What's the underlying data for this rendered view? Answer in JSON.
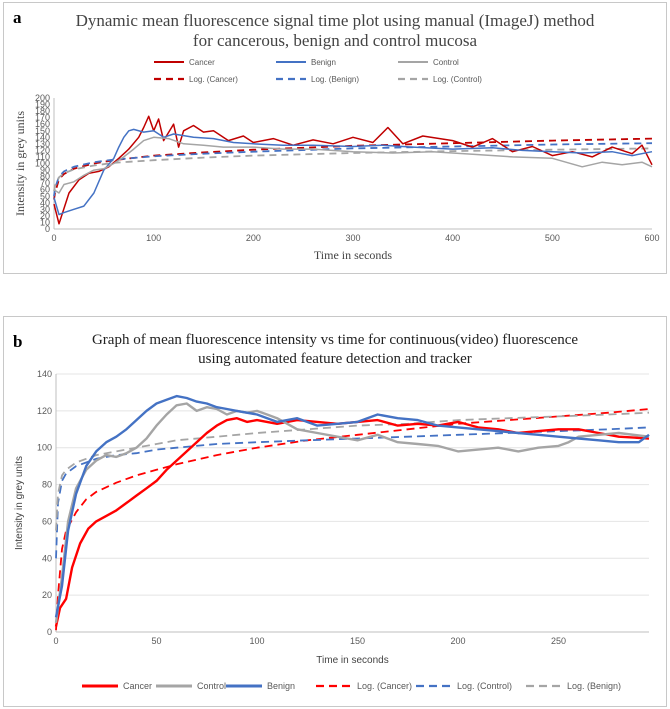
{
  "panel_a": {
    "letter": "a",
    "title_line1": "Dynamic mean fluorescence signal time plot using manual (ImageJ) method",
    "title_line2": "for cancerous, benign and control mucosa"
  },
  "panel_b": {
    "letter": "b",
    "title_line1": "Graph of mean fluorescence intensity  vs time for continuous(video) fluorescence",
    "title_line2": "using automated feature detection and tracker"
  },
  "chart_data": [
    {
      "type": "line",
      "title": "Dynamic mean fluorescence signal time plot using manual (ImageJ) method for cancerous, benign and control mucosa",
      "xlabel": "Time in seconds",
      "ylabel": "Intensity in grey units",
      "xlim": [
        0,
        600
      ],
      "ylim": [
        0,
        200
      ],
      "xticks": [
        0,
        100,
        200,
        300,
        400,
        500,
        600
      ],
      "yticks": [
        0,
        10,
        20,
        30,
        40,
        50,
        60,
        70,
        80,
        90,
        100,
        110,
        120,
        130,
        140,
        150,
        160,
        170,
        180,
        190,
        200
      ],
      "legend_position": "top",
      "series": [
        {
          "name": "Cancer",
          "color": "#c00000",
          "style": "solid",
          "x": [
            0,
            5,
            15,
            25,
            35,
            45,
            55,
            65,
            75,
            85,
            90,
            95,
            100,
            105,
            110,
            120,
            125,
            130,
            140,
            150,
            160,
            175,
            190,
            200,
            220,
            240,
            260,
            280,
            300,
            320,
            335,
            350,
            370,
            400,
            420,
            440,
            460,
            480,
            500,
            520,
            540,
            560,
            580,
            590,
            600
          ],
          "values": [
            38,
            8,
            55,
            75,
            85,
            88,
            95,
            108,
            122,
            140,
            155,
            172,
            150,
            168,
            135,
            160,
            125,
            150,
            158,
            148,
            150,
            135,
            142,
            132,
            138,
            128,
            136,
            130,
            140,
            132,
            155,
            130,
            142,
            135,
            125,
            138,
            118,
            126,
            112,
            118,
            110,
            125,
            115,
            128,
            98
          ]
        },
        {
          "name": "Benign",
          "color": "#4472c4",
          "style": "solid",
          "x": [
            0,
            5,
            10,
            20,
            30,
            40,
            50,
            60,
            65,
            70,
            75,
            80,
            90,
            100,
            110,
            120,
            140,
            160,
            180,
            200,
            230,
            260,
            300,
            330,
            360,
            400,
            440,
            470,
            500,
            530,
            560,
            580,
            600
          ],
          "values": [
            48,
            22,
            25,
            30,
            35,
            55,
            90,
            108,
            125,
            140,
            150,
            152,
            148,
            150,
            140,
            145,
            140,
            138,
            132,
            130,
            128,
            128,
            126,
            128,
            125,
            122,
            124,
            120,
            118,
            116,
            118,
            112,
            118
          ]
        },
        {
          "name": "Control",
          "color": "#a5a5a5",
          "style": "solid",
          "x": [
            0,
            5,
            10,
            20,
            30,
            40,
            50,
            60,
            70,
            80,
            90,
            100,
            115,
            130,
            150,
            170,
            200,
            230,
            260,
            300,
            340,
            380,
            420,
            460,
            500,
            530,
            550,
            570,
            590,
            600
          ],
          "values": [
            60,
            55,
            68,
            72,
            82,
            90,
            92,
            100,
            110,
            122,
            135,
            140,
            138,
            130,
            128,
            125,
            125,
            122,
            122,
            118,
            116,
            118,
            114,
            110,
            108,
            95,
            102,
            98,
            102,
            95
          ]
        },
        {
          "name": "Log. (Cancer)",
          "color": "#c00000",
          "style": "dashed",
          "x": [
            0,
            1,
            5,
            10,
            20,
            40,
            60,
            100,
            150,
            200,
            300,
            400,
            500,
            600
          ],
          "values": [
            45,
            55,
            76,
            84,
            92,
            100,
            105,
            112,
            117,
            121,
            127,
            131,
            135,
            138
          ]
        },
        {
          "name": "Log. (Benign)",
          "color": "#4472c4",
          "style": "dashed",
          "x": [
            0,
            1,
            5,
            10,
            20,
            40,
            60,
            100,
            150,
            200,
            300,
            400,
            500,
            600
          ],
          "values": [
            50,
            62,
            80,
            88,
            95,
            102,
            106,
            111,
            115,
            118,
            123,
            126,
            129,
            131
          ]
        },
        {
          "name": "Log. (Control)",
          "color": "#a5a5a5",
          "style": "dashed",
          "x": [
            0,
            1,
            5,
            10,
            20,
            40,
            60,
            100,
            150,
            200,
            300,
            400,
            500,
            600
          ],
          "values": [
            58,
            66,
            79,
            85,
            91,
            97,
            101,
            105,
            109,
            112,
            116,
            119,
            121,
            123
          ]
        }
      ]
    },
    {
      "type": "line",
      "title": "Graph of mean fluorescence intensity vs time for continuous(video) fluorescence using automated feature detection and tracker",
      "xlabel": "Time in seconds",
      "ylabel": "Intensity in grey units",
      "xlim": [
        0,
        295
      ],
      "ylim": [
        0,
        140
      ],
      "xticks": [
        0,
        50,
        100,
        150,
        200,
        250
      ],
      "yticks": [
        0,
        20,
        40,
        60,
        80,
        100,
        120,
        140
      ],
      "legend_position": "bottom",
      "series": [
        {
          "name": "Cancer",
          "color": "#ff0000",
          "style": "solid",
          "x": [
            0,
            2,
            5,
            8,
            12,
            16,
            20,
            25,
            30,
            35,
            40,
            45,
            50,
            55,
            60,
            65,
            70,
            75,
            80,
            85,
            90,
            95,
            100,
            110,
            120,
            130,
            140,
            150,
            160,
            170,
            180,
            190,
            200,
            210,
            220,
            230,
            240,
            250,
            260,
            270,
            280,
            295
          ],
          "values": [
            3,
            13,
            18,
            35,
            48,
            56,
            60,
            63,
            66,
            70,
            74,
            78,
            82,
            88,
            93,
            98,
            103,
            108,
            112,
            115,
            116,
            114,
            115,
            113,
            115,
            114,
            113,
            114,
            115,
            112,
            113,
            112,
            114,
            111,
            110,
            108,
            109,
            110,
            110,
            108,
            106,
            105
          ]
        },
        {
          "name": "Control",
          "color": "#a5a5a5",
          "style": "solid",
          "x": [
            0,
            3,
            6,
            10,
            15,
            20,
            25,
            30,
            35,
            40,
            45,
            50,
            55,
            60,
            65,
            70,
            75,
            80,
            85,
            90,
            95,
            100,
            105,
            110,
            120,
            130,
            140,
            150,
            160,
            170,
            180,
            190,
            200,
            210,
            220,
            230,
            240,
            250,
            255,
            260,
            270,
            280,
            295
          ],
          "values": [
            5,
            30,
            60,
            78,
            88,
            93,
            96,
            95,
            97,
            100,
            105,
            112,
            118,
            123,
            124,
            120,
            122,
            121,
            118,
            120,
            119,
            120,
            118,
            116,
            110,
            108,
            106,
            104,
            107,
            103,
            102,
            101,
            98,
            99,
            100,
            98,
            100,
            101,
            103,
            106,
            107,
            108,
            106
          ]
        },
        {
          "name": "Benign",
          "color": "#4472c4",
          "style": "solid",
          "x": [
            0,
            3,
            6,
            10,
            15,
            20,
            25,
            30,
            35,
            40,
            45,
            50,
            55,
            60,
            65,
            70,
            75,
            80,
            85,
            90,
            100,
            110,
            120,
            130,
            140,
            150,
            160,
            170,
            180,
            190,
            200,
            210,
            220,
            230,
            240,
            250,
            260,
            270,
            280,
            290,
            295
          ],
          "values": [
            8,
            25,
            55,
            75,
            90,
            98,
            103,
            106,
            110,
            115,
            120,
            124,
            126,
            128,
            127,
            125,
            124,
            122,
            121,
            120,
            118,
            114,
            116,
            112,
            113,
            114,
            118,
            116,
            115,
            112,
            111,
            110,
            109,
            108,
            107,
            106,
            105,
            104,
            103,
            103,
            107
          ]
        },
        {
          "name": "Log. (Cancer)",
          "color": "#ff0000",
          "style": "dashed",
          "x": [
            0,
            1,
            3,
            5,
            10,
            15,
            20,
            30,
            40,
            50,
            60,
            80,
            100,
            125,
            150,
            175,
            200,
            225,
            250,
            275,
            295
          ],
          "values": [
            1,
            20,
            45,
            55,
            65,
            72,
            76,
            81,
            85,
            88,
            91,
            96,
            100,
            104,
            107,
            110,
            113,
            115,
            117,
            119,
            121
          ]
        },
        {
          "name": "Log. (Control)",
          "color": "#4472c4",
          "style": "dashed",
          "x": [
            0,
            1,
            3,
            5,
            10,
            15,
            20,
            30,
            40,
            50,
            60,
            80,
            100,
            125,
            150,
            175,
            200,
            225,
            250,
            275,
            295
          ],
          "values": [
            40,
            70,
            82,
            86,
            90,
            92,
            94,
            96,
            97,
            99,
            100,
            102,
            103,
            104,
            105,
            106,
            107,
            108,
            109,
            110,
            111
          ]
        },
        {
          "name": "Log. (Benign)",
          "color": "#a5a5a5",
          "style": "dashed",
          "x": [
            0,
            1,
            3,
            5,
            10,
            15,
            20,
            30,
            40,
            50,
            60,
            80,
            100,
            125,
            150,
            175,
            200,
            225,
            250,
            275,
            295
          ],
          "values": [
            55,
            75,
            85,
            88,
            92,
            94,
            96,
            98,
            100,
            102,
            104,
            106,
            108,
            110,
            112,
            113,
            115,
            116,
            117,
            118,
            119
          ]
        }
      ]
    }
  ]
}
